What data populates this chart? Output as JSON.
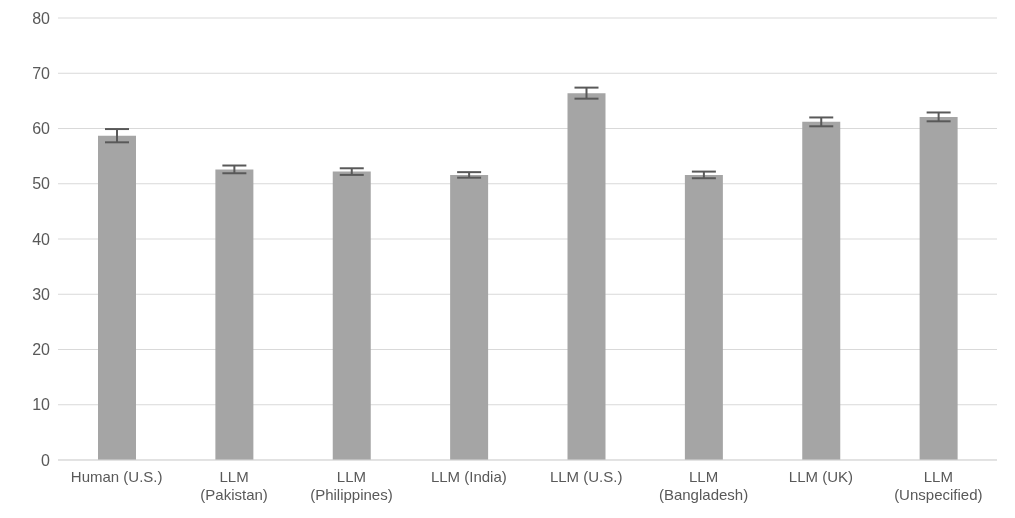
{
  "chart_data": {
    "type": "bar",
    "categories": [
      "Human (U.S.)",
      "LLM (Pakistan)",
      "LLM (Philippines)",
      "LLM (India)",
      "LLM (U.S.)",
      "LLM (Bangladesh)",
      "LLM (UK)",
      "LLM (Unspecified)"
    ],
    "values": [
      58.7,
      52.6,
      52.2,
      51.6,
      66.4,
      51.6,
      61.2,
      62.1
    ],
    "errors": [
      1.2,
      0.7,
      0.6,
      0.5,
      1.0,
      0.6,
      0.8,
      0.8
    ],
    "color": "#a5a5a5",
    "ylim": [
      0,
      80
    ],
    "yticks": [
      0,
      10,
      20,
      30,
      40,
      50,
      60,
      70,
      80
    ],
    "grid": "y"
  }
}
